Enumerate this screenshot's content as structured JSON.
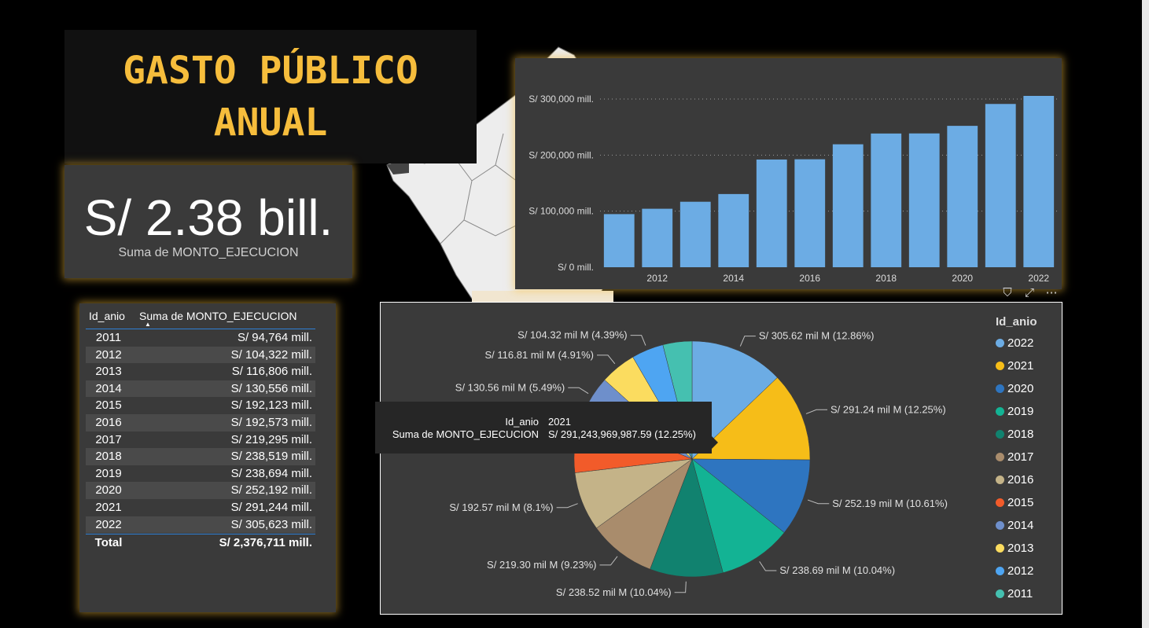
{
  "title": {
    "line1": "GASTO PÚBLICO",
    "line2": "ANUAL"
  },
  "kpi": {
    "value": "S/ 2.38 bill.",
    "label": "Suma de MONTO_EJECUCION"
  },
  "colors": {
    "accent": "#f6bd3c",
    "bar": "#6cace4",
    "panel": "#3a3a3a"
  },
  "bar_icons": [
    "filter-icon",
    "focus-mode-icon",
    "more-options-icon"
  ],
  "table": {
    "headers": [
      "Id_anio",
      "Suma de MONTO_EJECUCION"
    ],
    "rows": [
      [
        "2011",
        "S/ 94,764 mill."
      ],
      [
        "2012",
        "S/ 104,322 mill."
      ],
      [
        "2013",
        "S/ 116,806 mill."
      ],
      [
        "2014",
        "S/ 130,556 mill."
      ],
      [
        "2015",
        "S/ 192,123 mill."
      ],
      [
        "2016",
        "S/ 192,573 mill."
      ],
      [
        "2017",
        "S/ 219,295 mill."
      ],
      [
        "2018",
        "S/ 238,519 mill."
      ],
      [
        "2019",
        "S/ 238,694 mill."
      ],
      [
        "2020",
        "S/ 252,192 mill."
      ],
      [
        "2021",
        "S/ 291,244 mill."
      ],
      [
        "2022",
        "S/ 305,623 mill."
      ]
    ],
    "total": [
      "Total",
      "S/ 2,376,711 mill."
    ]
  },
  "tooltip": {
    "key1": "Id_anio",
    "val1": "2021",
    "key2": "Suma de MONTO_EJECUCION",
    "val2": "S/ 291,243,969,987.59 (12.25%)"
  },
  "chart_data": [
    {
      "type": "bar",
      "categories": [
        "2011",
        "2012",
        "2013",
        "2014",
        "2015",
        "2016",
        "2017",
        "2018",
        "2019",
        "2020",
        "2021",
        "2022"
      ],
      "values": [
        94764,
        104322,
        116806,
        130556,
        192123,
        192573,
        219295,
        238519,
        238694,
        252192,
        291244,
        305623
      ],
      "x_tick_labels": [
        "2012",
        "2014",
        "2016",
        "2018",
        "2020",
        "2022"
      ],
      "y_tick_labels": [
        "S/ 0 mill.",
        "S/ 100,000 mill.",
        "S/ 200,000 mill.",
        "S/ 300,000 mill."
      ],
      "y_ticks": [
        0,
        100000,
        200000,
        300000
      ],
      "ylim": [
        0,
        305623
      ],
      "grid": true
    },
    {
      "type": "pie",
      "legend_title": "Id_anio",
      "legend_placement": "right",
      "categories": [
        "2022",
        "2021",
        "2020",
        "2019",
        "2018",
        "2017",
        "2016",
        "2015",
        "2014",
        "2013",
        "2012",
        "2011"
      ],
      "values": [
        305.62,
        291.24,
        252.19,
        238.69,
        238.52,
        219.3,
        192.57,
        192.12,
        130.56,
        116.81,
        104.32,
        94.76
      ],
      "colors": [
        "#6cace4",
        "#f6bd18",
        "#2e75c0",
        "#13b394",
        "#11826f",
        "#a98c6c",
        "#c4b388",
        "#f25b2a",
        "#6e8fcb",
        "#fbdc5f",
        "#4ea5f2",
        "#45c0b0"
      ],
      "data_labels": [
        "S/ 305.62 mil M (12.86%)",
        "S/ 291.24 mil M (12.25%)",
        "S/ 252.19 mil M (10.61%)",
        "S/ 238.69 mil M (10.04%)",
        "S/ 238.52 mil M (10.04%)",
        "S/ 219.30 mil M (9.23%)",
        "S/ 192.57 mil M (8.1%)",
        "",
        "S/ 130.56 mil M (5.49%)",
        "S/ 116.81 mil M (4.91%)",
        "S/ 104.32 mil M (4.39%)",
        ""
      ]
    }
  ]
}
